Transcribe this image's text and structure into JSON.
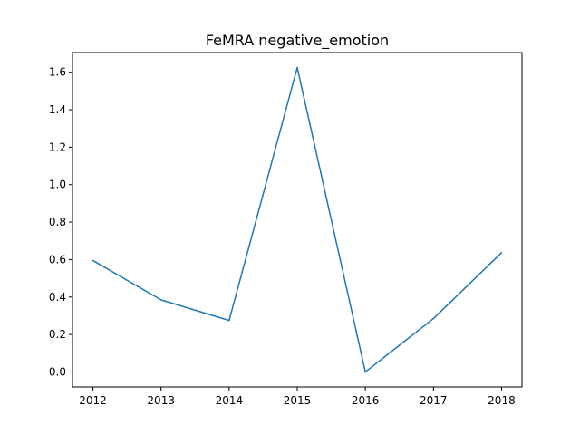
{
  "chart_data": {
    "type": "line",
    "title": "FeMRA negative_emotion",
    "xlabel": "",
    "ylabel": "",
    "x": [
      2012,
      2013,
      2014,
      2015,
      2016,
      2017,
      2018
    ],
    "series": [
      {
        "values": [
          0.595,
          0.385,
          0.275,
          1.625,
          0.0,
          0.285,
          0.637
        ],
        "color": "#1f77b4"
      }
    ],
    "x_ticks": [
      "2012",
      "2013",
      "2014",
      "2015",
      "2016",
      "2017",
      "2018"
    ],
    "y_ticks": [
      "0.0",
      "0.2",
      "0.4",
      "0.6",
      "0.8",
      "1.0",
      "1.2",
      "1.4",
      "1.6"
    ],
    "xlim": [
      2011.7,
      2018.3
    ],
    "ylim": [
      -0.08,
      1.705
    ],
    "grid": false,
    "legend": "none"
  }
}
